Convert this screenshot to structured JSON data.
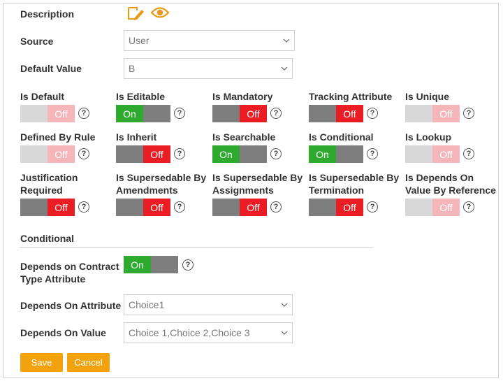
{
  "description": {
    "label": "Description",
    "edit_icon": "edit-pencil-icon",
    "view_icon": "eye-icon",
    "icon_color": "#e79a18"
  },
  "source": {
    "label": "Source",
    "value": "User"
  },
  "default_value": {
    "label": "Default Value",
    "value": "B"
  },
  "flags": {
    "row1": [
      {
        "label": "Is Default",
        "state": "Off",
        "mode": "disabled"
      },
      {
        "label": "Is Editable",
        "state": "On",
        "mode": "on"
      },
      {
        "label": "Is Mandatory",
        "state": "Off",
        "mode": "off"
      },
      {
        "label": "Tracking Attribute",
        "state": "Off",
        "mode": "off"
      },
      {
        "label": "Is Unique",
        "state": "Off",
        "mode": "disabled"
      }
    ],
    "row2": [
      {
        "label": "Defined By Rule",
        "state": "Off",
        "mode": "disabled"
      },
      {
        "label": "Is Inherit",
        "state": "Off",
        "mode": "off"
      },
      {
        "label": "Is Searchable",
        "state": "On",
        "mode": "on"
      },
      {
        "label": "Is Conditional",
        "state": "On",
        "mode": "on"
      },
      {
        "label": "Is Lookup",
        "state": "Off",
        "mode": "disabled"
      }
    ],
    "row3": [
      {
        "label1": "Justification",
        "label2": "Required",
        "state": "Off",
        "mode": "off"
      },
      {
        "label1": "Is Supersedable By",
        "label2": "Amendments",
        "state": "Off",
        "mode": "off"
      },
      {
        "label1": "Is Supersedable By",
        "label2": "Assignments",
        "state": "Off",
        "mode": "off"
      },
      {
        "label1": "Is Supersedable By",
        "label2": "Termination",
        "state": "Off",
        "mode": "off"
      },
      {
        "label1": "Is Depends On",
        "label2": "Value By Reference",
        "state": "Off",
        "mode": "disabled"
      }
    ]
  },
  "help_symbol": "?",
  "conditional": {
    "title": "Conditional",
    "depends_contract": {
      "label1": "Depends on Contract",
      "label2": "Type Attribute",
      "state": "On",
      "mode": "on"
    },
    "depends_attribute": {
      "label": "Depends On Attribute",
      "value": "Choice1"
    },
    "depends_value": {
      "label": "Depends On Value",
      "value": "Choice 1,Choice 2,Choice 3"
    }
  },
  "buttons": {
    "save": "Save",
    "cancel": "Cancel"
  },
  "colors": {
    "on": "#2eab2e",
    "off": "#ea1c24",
    "neutral": "#7e7e7e",
    "accent": "#f2a20c"
  }
}
